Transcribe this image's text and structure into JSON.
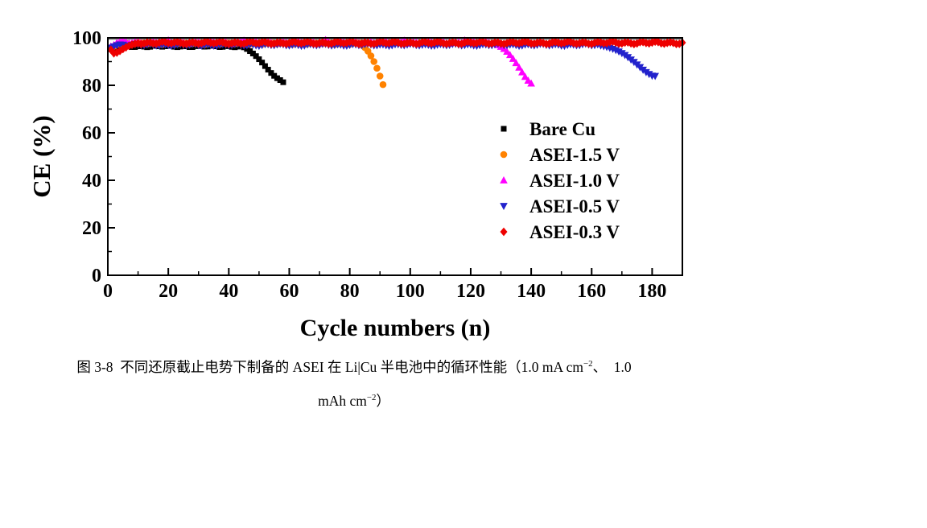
{
  "page": {
    "background": "#FFFFFF"
  },
  "chart_data": {
    "type": "scatter",
    "title": "",
    "xlabel": "Cycle numbers (n)",
    "ylabel": "CE (%)",
    "xlim": [
      0,
      190
    ],
    "ylim": [
      0,
      100
    ],
    "x_ticks": [
      0,
      20,
      40,
      60,
      80,
      100,
      120,
      140,
      160,
      180
    ],
    "y_ticks": [
      0,
      20,
      40,
      60,
      80,
      100
    ],
    "x_minor_step": 10,
    "y_minor_step": 10,
    "grid": false,
    "frame_color": "#000000",
    "reference_line": {
      "y": 99.4,
      "color": "#8C8C8C"
    },
    "legend": {
      "position": "inside-right",
      "source": "series-names"
    },
    "series": [
      {
        "name": "Bare Cu",
        "marker": "square",
        "color": "#000000",
        "stable": {
          "from": 1,
          "to": 44,
          "mean": 96.4,
          "noise": 0.4
        },
        "points_override": [
          [
            1,
            95.2
          ],
          [
            2,
            95.7
          ],
          [
            3,
            96.0
          ]
        ],
        "decline": [
          [
            45,
            96.0
          ],
          [
            46,
            95.3
          ],
          [
            47,
            94.4
          ],
          [
            48,
            93.4
          ],
          [
            49,
            92.3
          ],
          [
            50,
            91.0
          ],
          [
            51,
            89.6
          ],
          [
            52,
            88.1
          ],
          [
            53,
            86.6
          ],
          [
            54,
            85.2
          ],
          [
            55,
            84.0
          ],
          [
            56,
            83.0
          ],
          [
            57,
            82.2
          ],
          [
            58,
            81.3
          ]
        ]
      },
      {
        "name": "ASEI-1.5 V",
        "marker": "circle",
        "color": "#FF8200",
        "stable": {
          "from": 1,
          "to": 83,
          "mean": 97.6,
          "noise": 0.45
        },
        "points_override": [
          [
            1,
            95.9
          ],
          [
            2,
            96.4
          ]
        ],
        "decline": [
          [
            84,
            96.9
          ],
          [
            85,
            95.9
          ],
          [
            86,
            94.4
          ],
          [
            87,
            92.4
          ],
          [
            88,
            90.0
          ],
          [
            89,
            87.2
          ],
          [
            90,
            83.9
          ],
          [
            91,
            80.3
          ]
        ]
      },
      {
        "name": "ASEI-1.0 V",
        "marker": "triangle-up",
        "color": "#FF00FF",
        "stable": {
          "from": 1,
          "to": 128,
          "mean": 98.1,
          "noise": 0.55
        },
        "points_override": [
          [
            1,
            96.4
          ],
          [
            2,
            97.0
          ],
          [
            20,
            99.0
          ],
          [
            45,
            98.9
          ],
          [
            72,
            99.1
          ],
          [
            98,
            98.9
          ],
          [
            118,
            99.0
          ]
        ],
        "decline": [
          [
            129,
            97.0
          ],
          [
            130,
            96.3
          ],
          [
            131,
            95.4
          ],
          [
            132,
            94.2
          ],
          [
            133,
            92.8
          ],
          [
            134,
            91.2
          ],
          [
            135,
            89.4
          ],
          [
            136,
            87.5
          ],
          [
            137,
            85.5
          ],
          [
            138,
            83.6
          ],
          [
            139,
            82.0
          ],
          [
            140,
            80.8
          ]
        ]
      },
      {
        "name": "ASEI-0.5 V",
        "marker": "triangle-down",
        "color": "#2222CC",
        "stable": {
          "from": 1,
          "to": 162,
          "mean": 97.0,
          "noise": 0.45
        },
        "points_override": [
          [
            1,
            95.8
          ],
          [
            2,
            96.3
          ]
        ],
        "decline": [
          [
            163,
            96.7
          ],
          [
            164,
            96.4
          ],
          [
            165,
            96.1
          ],
          [
            166,
            95.7
          ],
          [
            167,
            95.3
          ],
          [
            168,
            94.8
          ],
          [
            169,
            94.2
          ],
          [
            170,
            93.5
          ],
          [
            171,
            92.7
          ],
          [
            172,
            91.8
          ],
          [
            173,
            90.8
          ],
          [
            174,
            89.8
          ],
          [
            175,
            88.7
          ],
          [
            176,
            87.6
          ],
          [
            177,
            86.5
          ],
          [
            178,
            85.5
          ],
          [
            179,
            84.7
          ],
          [
            180,
            84.0
          ],
          [
            181,
            83.9
          ]
        ]
      },
      {
        "name": "ASEI-0.3 V",
        "marker": "diamond",
        "color": "#EE0000",
        "stable": {
          "from": 1,
          "to": 190,
          "mean": 97.9,
          "noise": 0.55
        },
        "points_override": [
          [
            1,
            95.0
          ],
          [
            2,
            93.5
          ],
          [
            3,
            93.8
          ],
          [
            4,
            94.5
          ],
          [
            5,
            95.3
          ],
          [
            6,
            96.0
          ],
          [
            7,
            96.6
          ],
          [
            8,
            97.1
          ],
          [
            9,
            97.5
          ]
        ],
        "decline": []
      }
    ]
  },
  "caption": {
    "line1_parts": [
      {
        "text": "图 3-8  不同还原截止电势下制备的 ASEI 在 Li|Cu 半电池中的循环性能（1.0 mA cm"
      },
      {
        "text": "−2",
        "sup": true
      },
      {
        "text": "、  1.0"
      }
    ],
    "line2_parts": [
      {
        "text": "mAh cm"
      },
      {
        "text": "−2",
        "sup": true
      },
      {
        "text": "）"
      }
    ]
  }
}
